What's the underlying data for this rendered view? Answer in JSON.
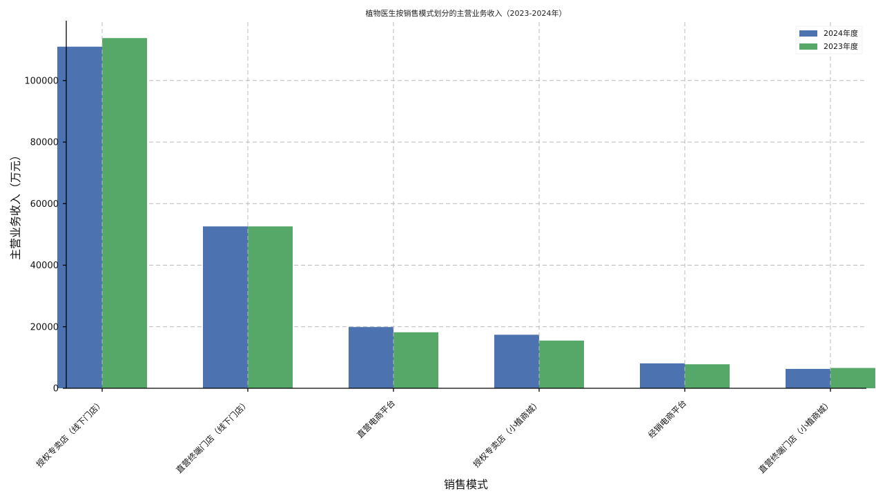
{
  "chart_data": {
    "type": "bar",
    "title": "植物医生按销售模式划分的主营业务收入（2023-2024年）",
    "xlabel": "销售模式",
    "ylabel": "主营业务收入（万元）",
    "categories": [
      "授权专卖店（线下门店）",
      "直营终端门店（线下门店）",
      "直营电商平台",
      "授权专卖店（小植商城）",
      "经销电商平台",
      "直营终端门店（小植商城）"
    ],
    "series": [
      {
        "name": "2024年度",
        "color": "#4c72b0",
        "values": [
          111000,
          52600,
          19900,
          17400,
          8100,
          6300
        ]
      },
      {
        "name": "2023年度",
        "color": "#55a868",
        "values": [
          113800,
          52600,
          18200,
          15500,
          7800,
          6600
        ]
      }
    ],
    "ylim": [
      0,
      119000
    ],
    "yticks": [
      0,
      20000,
      40000,
      60000,
      80000,
      100000
    ],
    "grid": true,
    "legend_position": "top-right"
  }
}
